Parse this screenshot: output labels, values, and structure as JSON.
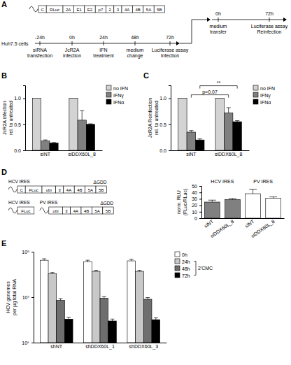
{
  "figure": {
    "panel_labels": [
      "A",
      "B",
      "C",
      "D",
      "E"
    ],
    "construct": {
      "boxes": [
        "C",
        "RLuc",
        "2A",
        "E1",
        "E2",
        "p7",
        "2",
        "3",
        "4A",
        "4B",
        "5A",
        "5B"
      ]
    },
    "timeline": {
      "cells": "Huh7.5 cells",
      "events": [
        {
          "time": "-24h",
          "desc": [
            "siRNA",
            "transfection"
          ]
        },
        {
          "time": "0h",
          "desc": [
            "JcR2A",
            "infection"
          ]
        },
        {
          "time": "24h",
          "desc": [
            "IFN",
            "treatment"
          ]
        },
        {
          "time": "48h",
          "desc": [
            "medium",
            "change"
          ]
        },
        {
          "time": "72h",
          "desc": [
            "Luciferase assay",
            "Infection"
          ]
        }
      ]
    },
    "timeline2": {
      "events": [
        {
          "time": "0h",
          "desc": [
            "medium",
            "transfer"
          ]
        },
        {
          "time": "72h",
          "desc": [
            "Luciferase assay",
            "Reinfection"
          ]
        }
      ]
    },
    "constructs": [
      {
        "segments": [
          {
            "ires": "HCV IRES",
            "boxes": [
              "C",
              "FLuc",
              "ubi",
              "3",
              "4A",
              "4B",
              "5A",
              "5B"
            ]
          }
        ],
        "mutation": "ΔGDD"
      },
      {
        "segments": [
          {
            "ires": "HCV IRES",
            "boxes": [
              "FLuc"
            ]
          },
          {
            "ires": "PV IRES",
            "boxes": [
              "ubi",
              "3",
              "4A",
              "4B",
              "5A",
              "5B"
            ]
          }
        ],
        "mutation": "ΔGDD"
      }
    ]
  },
  "chart_data": [
    {
      "type": "bar",
      "ylabel": [
        "JcR2A infection",
        "rel. to untreated"
      ],
      "categories": [
        "siNT",
        "siDDX60L_8"
      ],
      "series": [
        {
          "name": "no IFN",
          "color": "#d3d3d3",
          "values": [
            1,
            1
          ]
        },
        {
          "name": "IFNγ",
          "color": "#808080",
          "values": [
            0.18,
            0.58
          ],
          "errors": [
            0.02,
            0.18
          ]
        },
        {
          "name": "IFNα",
          "color": "#000000",
          "values": [
            0.14,
            0.5
          ],
          "errors": [
            0.01,
            0.01
          ]
        }
      ],
      "ylim": [
        0,
        1.25
      ],
      "yticks": [
        {
          "value": 0,
          "label": "0.0"
        },
        {
          "value": 0.5,
          "label": "0.5"
        },
        {
          "value": 1,
          "label": "1.0"
        }
      ],
      "legend": "right"
    },
    {
      "type": "bar",
      "ylabel": [
        "JcR2A Reinfection",
        "rel. to untreated"
      ],
      "categories": [
        "siNT",
        "siDDX60L_8"
      ],
      "series": [
        {
          "name": "no IFN",
          "color": "#d3d3d3",
          "values": [
            1,
            1
          ]
        },
        {
          "name": "IFNγ",
          "color": "#808080",
          "values": [
            0.35,
            0.72
          ],
          "errors": [
            0.03,
            0.1
          ]
        },
        {
          "name": "IFNα",
          "color": "#000000",
          "values": [
            0.2,
            0.55
          ],
          "errors": [
            0.02,
            0.02
          ]
        }
      ],
      "ylim": [
        0,
        1.25
      ],
      "yticks": [
        {
          "value": 0,
          "label": "0.0"
        },
        {
          "value": 0.5,
          "label": "0.5"
        },
        {
          "value": 1,
          "label": "1.0"
        }
      ],
      "legend": "right",
      "annotations": [
        {
          "text": "p=0.07",
          "series": 1
        },
        {
          "text": "**",
          "series": 2
        }
      ]
    },
    {
      "type": "bar",
      "ylabel": [
        "norm. RLU",
        "(FLuc/RLuc)"
      ],
      "categories": [
        "siNT",
        "siDDX60L_8",
        "siNT",
        "siDDX60L_8"
      ],
      "series": [
        {
          "name": "HCV IRES",
          "color": "#808080",
          "values": [
            25,
            29,
            null,
            null
          ],
          "errors": [
            3,
            1.5,
            null,
            null
          ]
        },
        {
          "name": "PV IRES",
          "color": "#ffffff",
          "values": [
            null,
            null,
            38,
            31
          ],
          "errors": [
            null,
            null,
            7,
            2
          ]
        }
      ],
      "ylim": [
        0,
        50
      ],
      "yticks": [
        0,
        10,
        20,
        30,
        40,
        50
      ]
    },
    {
      "type": "bar",
      "ylabel": [
        "HCV genomes",
        "per µg total RNA"
      ],
      "log": "y",
      "categories": [
        "shNT",
        "shDDX60L_1",
        "shDDX60L_3"
      ],
      "series": [
        {
          "name": "0h",
          "color": "#ffffff",
          "values": [
            65000000,
            60000000,
            63000000
          ],
          "errors": [
            5000000,
            5000000,
            5000000
          ]
        },
        {
          "name": "24h",
          "color": "#c8c8c8",
          "values": [
            33000000,
            37000000,
            37000000
          ],
          "errors": [
            2000000,
            2000000,
            2000000
          ]
        },
        {
          "name": "48h",
          "color": "#6e6e6e",
          "values": [
            8500000,
            9500000,
            9000000
          ],
          "errors": [
            800000,
            800000,
            800000
          ]
        },
        {
          "name": "72h",
          "color": "#000000",
          "values": [
            3300000,
            3000000,
            3200000
          ],
          "errors": [
            300000,
            300000,
            300000
          ]
        }
      ],
      "ylim": [
        1000000,
        100000000
      ],
      "yticks": [
        {
          "value": 1000000,
          "label": "10⁶"
        },
        {
          "value": 10000000,
          "label": "10⁷"
        },
        {
          "value": 100000000,
          "label": "10⁸"
        }
      ],
      "legend": "right",
      "annotations": [
        {
          "text": "2'CMC",
          "series": [
            1,
            2,
            3
          ]
        }
      ]
    }
  ]
}
